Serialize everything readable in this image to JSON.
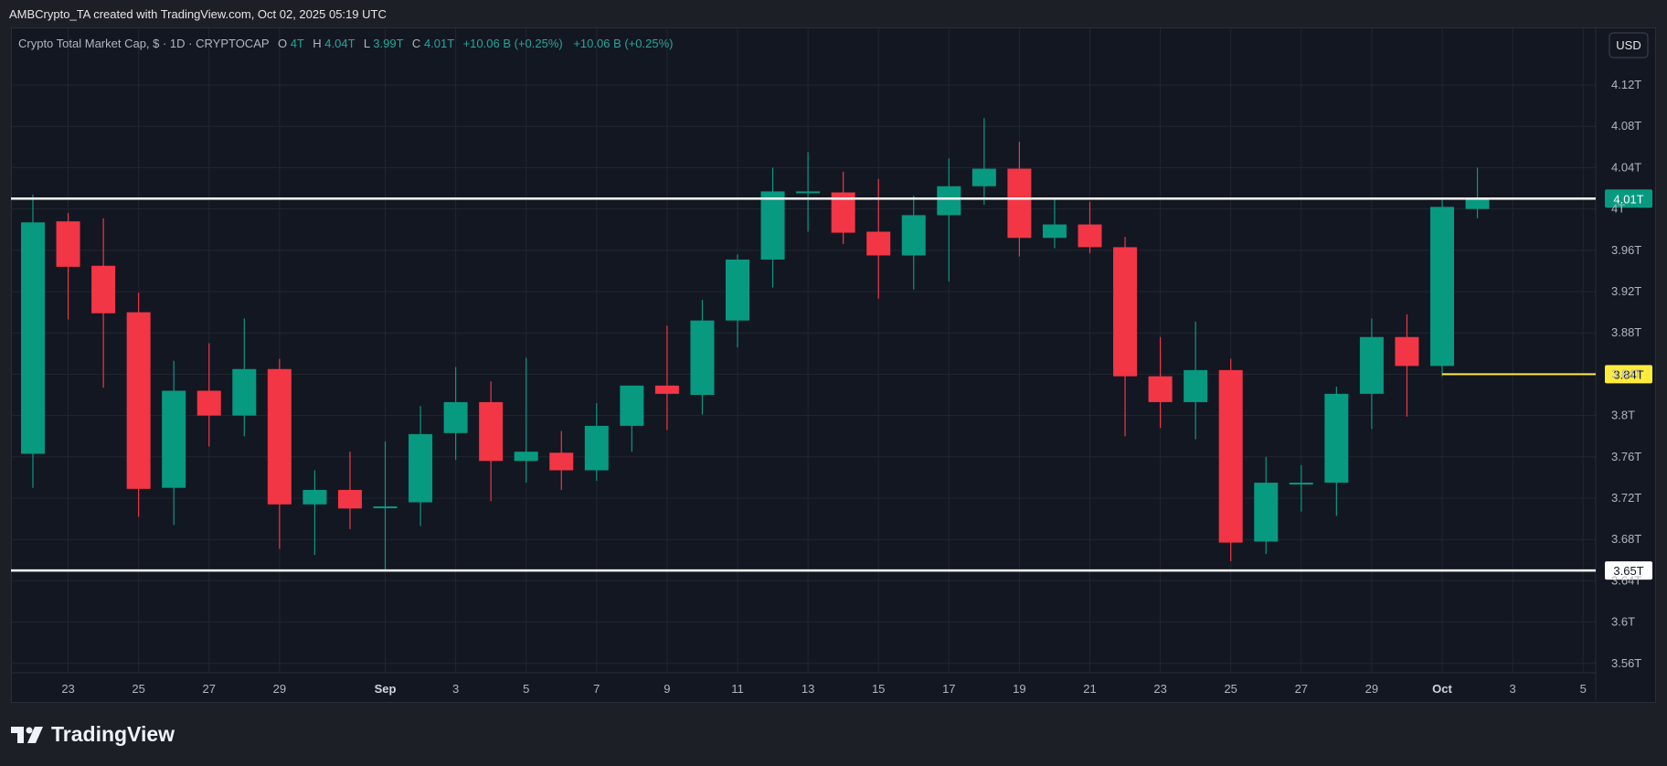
{
  "header": {
    "attribution": "AMBCrypto_TA created with TradingView.com, Oct 02, 2025 05:19 UTC"
  },
  "legend": {
    "title": "Crypto Total Market Cap, $ · 1D · CRYPTOCAP",
    "o_label": "O",
    "o_value": "4T",
    "h_label": "H",
    "h_value": "4.04T",
    "l_label": "L",
    "l_value": "3.99T",
    "c_label": "C",
    "c_value": "4.01T",
    "change1": "+10.06 B (+0.25%)",
    "change2": "+10.06 B (+0.25%)"
  },
  "currency_button": "USD",
  "branding": {
    "name": "TradingView"
  },
  "colors": {
    "up": "#089981",
    "down": "#f23645",
    "grid": "#222631",
    "text": "#b2b5be",
    "legend_value": "#26a69a",
    "price_label_bg": "#089981",
    "support_line": "#ffffff",
    "marker_line": "#ffeb3b"
  },
  "chart_data": {
    "type": "candlestick",
    "title": "Crypto Total Market Cap, $ · 1D · CRYPTOCAP",
    "ylim": [
      3.54,
      4.16
    ],
    "y_ticks": [
      {
        "value": 4.12,
        "label": "4.12T"
      },
      {
        "value": 4.08,
        "label": "4.08T"
      },
      {
        "value": 4.04,
        "label": "4.04T"
      },
      {
        "value": 4.0,
        "label": "4T"
      },
      {
        "value": 3.96,
        "label": "3.96T"
      },
      {
        "value": 3.92,
        "label": "3.92T"
      },
      {
        "value": 3.88,
        "label": "3.88T"
      },
      {
        "value": 3.84,
        "label": "3.84T"
      },
      {
        "value": 3.8,
        "label": "3.8T"
      },
      {
        "value": 3.76,
        "label": "3.76T"
      },
      {
        "value": 3.72,
        "label": "3.72T"
      },
      {
        "value": 3.68,
        "label": "3.68T"
      },
      {
        "value": 3.64,
        "label": "3.64T"
      },
      {
        "value": 3.6,
        "label": "3.6T"
      },
      {
        "value": 3.56,
        "label": "3.56T"
      }
    ],
    "x_ticks": [
      {
        "index": 1,
        "label": "23"
      },
      {
        "index": 3,
        "label": "25"
      },
      {
        "index": 5,
        "label": "27"
      },
      {
        "index": 7,
        "label": "29"
      },
      {
        "index": 10,
        "label": "Sep"
      },
      {
        "index": 12,
        "label": "3"
      },
      {
        "index": 14,
        "label": "5"
      },
      {
        "index": 16,
        "label": "7"
      },
      {
        "index": 18,
        "label": "9"
      },
      {
        "index": 20,
        "label": "11"
      },
      {
        "index": 22,
        "label": "13"
      },
      {
        "index": 24,
        "label": "15"
      },
      {
        "index": 26,
        "label": "17"
      },
      {
        "index": 28,
        "label": "19"
      },
      {
        "index": 30,
        "label": "21"
      },
      {
        "index": 32,
        "label": "23"
      },
      {
        "index": 34,
        "label": "25"
      },
      {
        "index": 36,
        "label": "27"
      },
      {
        "index": 38,
        "label": "29"
      },
      {
        "index": 40,
        "label": "Oct"
      },
      {
        "index": 42,
        "label": "3"
      },
      {
        "index": 44,
        "label": "5"
      }
    ],
    "candles": [
      {
        "o": 3.763,
        "h": 4.014,
        "l": 3.73,
        "c": 3.987
      },
      {
        "o": 3.988,
        "h": 3.996,
        "l": 3.893,
        "c": 3.944
      },
      {
        "o": 3.945,
        "h": 3.991,
        "l": 3.827,
        "c": 3.899
      },
      {
        "o": 3.9,
        "h": 3.919,
        "l": 3.702,
        "c": 3.729
      },
      {
        "o": 3.73,
        "h": 3.853,
        "l": 3.694,
        "c": 3.824
      },
      {
        "o": 3.824,
        "h": 3.87,
        "l": 3.77,
        "c": 3.8
      },
      {
        "o": 3.8,
        "h": 3.894,
        "l": 3.78,
        "c": 3.845
      },
      {
        "o": 3.845,
        "h": 3.855,
        "l": 3.671,
        "c": 3.714
      },
      {
        "o": 3.714,
        "h": 3.747,
        "l": 3.665,
        "c": 3.728
      },
      {
        "o": 3.728,
        "h": 3.765,
        "l": 3.69,
        "c": 3.71
      },
      {
        "o": 3.711,
        "h": 3.775,
        "l": 3.65,
        "c": 3.712
      },
      {
        "o": 3.716,
        "h": 3.809,
        "l": 3.693,
        "c": 3.782
      },
      {
        "o": 3.783,
        "h": 3.847,
        "l": 3.757,
        "c": 3.813
      },
      {
        "o": 3.813,
        "h": 3.833,
        "l": 3.717,
        "c": 3.756
      },
      {
        "o": 3.756,
        "h": 3.856,
        "l": 3.735,
        "c": 3.765
      },
      {
        "o": 3.764,
        "h": 3.785,
        "l": 3.728,
        "c": 3.747
      },
      {
        "o": 3.747,
        "h": 3.812,
        "l": 3.737,
        "c": 3.79
      },
      {
        "o": 3.79,
        "h": 3.829,
        "l": 3.765,
        "c": 3.829
      },
      {
        "o": 3.829,
        "h": 3.887,
        "l": 3.786,
        "c": 3.821
      },
      {
        "o": 3.82,
        "h": 3.912,
        "l": 3.801,
        "c": 3.892
      },
      {
        "o": 3.892,
        "h": 3.956,
        "l": 3.866,
        "c": 3.951
      },
      {
        "o": 3.951,
        "h": 4.04,
        "l": 3.924,
        "c": 4.017
      },
      {
        "o": 4.017,
        "h": 4.055,
        "l": 3.978,
        "c": 4.017
      },
      {
        "o": 4.016,
        "h": 4.036,
        "l": 3.966,
        "c": 3.977
      },
      {
        "o": 3.978,
        "h": 4.029,
        "l": 3.913,
        "c": 3.955
      },
      {
        "o": 3.955,
        "h": 4.013,
        "l": 3.922,
        "c": 3.994
      },
      {
        "o": 3.994,
        "h": 4.049,
        "l": 3.93,
        "c": 4.022
      },
      {
        "o": 4.022,
        "h": 4.088,
        "l": 4.004,
        "c": 4.039
      },
      {
        "o": 4.039,
        "h": 4.065,
        "l": 3.954,
        "c": 3.972
      },
      {
        "o": 3.972,
        "h": 4.009,
        "l": 3.962,
        "c": 3.985
      },
      {
        "o": 3.985,
        "h": 4.007,
        "l": 3.957,
        "c": 3.963
      },
      {
        "o": 3.963,
        "h": 3.973,
        "l": 3.78,
        "c": 3.838
      },
      {
        "o": 3.838,
        "h": 3.876,
        "l": 3.788,
        "c": 3.813
      },
      {
        "o": 3.813,
        "h": 3.891,
        "l": 3.777,
        "c": 3.844
      },
      {
        "o": 3.844,
        "h": 3.855,
        "l": 3.659,
        "c": 3.677
      },
      {
        "o": 3.678,
        "h": 3.76,
        "l": 3.666,
        "c": 3.735
      },
      {
        "o": 3.735,
        "h": 3.752,
        "l": 3.707,
        "c": 3.735
      },
      {
        "o": 3.735,
        "h": 3.828,
        "l": 3.703,
        "c": 3.821
      },
      {
        "o": 3.821,
        "h": 3.894,
        "l": 3.787,
        "c": 3.876
      },
      {
        "o": 3.876,
        "h": 3.898,
        "l": 3.799,
        "c": 3.848
      },
      {
        "o": 3.848,
        "h": 4.009,
        "l": 3.838,
        "c": 4.002
      },
      {
        "o": 4.0,
        "h": 4.04,
        "l": 3.991,
        "c": 4.01
      }
    ],
    "horizontal_lines": [
      {
        "value": 4.01,
        "label": "4.01T",
        "style": "white"
      },
      {
        "value": 3.65,
        "label": "3.65T",
        "style": "white"
      },
      {
        "value": 3.84,
        "label": "3.84T",
        "style": "yellow",
        "from_index": 40
      }
    ]
  }
}
